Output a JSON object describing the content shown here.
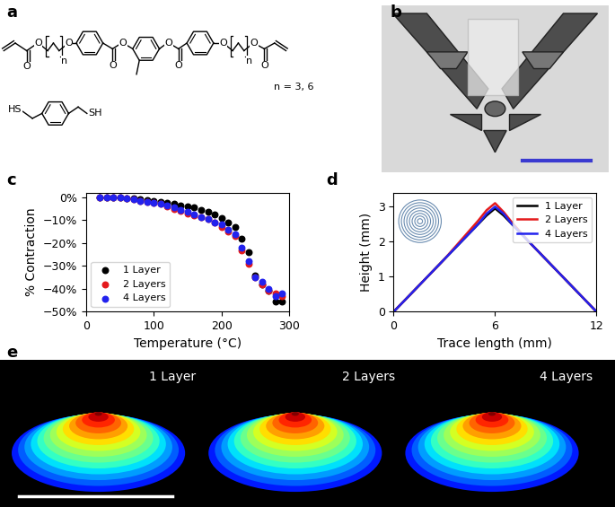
{
  "panel_labels": [
    "a",
    "b",
    "c",
    "d",
    "e"
  ],
  "structure": {
    "oxygen": "O",
    "repeat": "n",
    "thiol_left": "HS",
    "thiol_right": "SH",
    "caption": "n = 3, 6"
  },
  "chart_data": [
    {
      "type": "scatter",
      "xlabel": "Temperature (°C)",
      "ylabel": "% Contraction",
      "x": [
        20,
        30,
        40,
        50,
        60,
        70,
        80,
        90,
        100,
        110,
        120,
        130,
        140,
        150,
        160,
        170,
        180,
        190,
        200,
        210,
        220,
        230,
        240,
        250,
        260,
        270,
        280,
        290
      ],
      "series": [
        {
          "name": "1 Layer",
          "color": "#000000",
          "marker": "o",
          "values": [
            0,
            0,
            0,
            0,
            -0.3,
            -0.5,
            -0.8,
            -1.2,
            -1.6,
            -2,
            -2.5,
            -3,
            -3.5,
            -4,
            -4.5,
            -5.5,
            -6.5,
            -7.5,
            -9,
            -11,
            -13,
            -18,
            -24,
            -34,
            -38,
            -41,
            -45.5,
            -45.5
          ]
        },
        {
          "name": "2 Layers",
          "color": "#e41a1c",
          "marker": "o",
          "values": [
            0,
            0,
            0,
            0,
            -0.5,
            -1,
            -1.5,
            -2,
            -2.5,
            -3,
            -4,
            -5,
            -6,
            -7,
            -8,
            -8.5,
            -9.5,
            -11,
            -13,
            -15,
            -17,
            -23,
            -29,
            -35,
            -38,
            -41,
            -42,
            -43
          ]
        },
        {
          "name": "4 Layers",
          "color": "#2222ee",
          "marker": "o",
          "values": [
            0,
            0,
            0,
            0,
            -0.5,
            -1,
            -1.5,
            -2,
            -2.5,
            -3,
            -3.5,
            -4.5,
            -5.5,
            -6.5,
            -7.5,
            -8.5,
            -9.5,
            -11,
            -12,
            -14,
            -16,
            -22,
            -28,
            -35,
            -37,
            -40,
            -43,
            -42
          ]
        }
      ],
      "xlim": [
        0,
        300
      ],
      "xticks": [
        0,
        100,
        200,
        300
      ],
      "ylim": [
        -50,
        2
      ],
      "yticks": [
        {
          "value": 0,
          "label": "0%"
        },
        {
          "value": -10,
          "label": "−10%"
        },
        {
          "value": -20,
          "label": "−20%"
        },
        {
          "value": -30,
          "label": "−30%"
        },
        {
          "value": -40,
          "label": "−40%"
        },
        {
          "value": -50,
          "label": "−50%"
        }
      ],
      "legend": "lower left"
    },
    {
      "type": "line",
      "xlabel": "Trace length (mm)",
      "ylabel": "Height (mm)",
      "x": [
        0,
        1,
        2,
        3,
        4,
        5,
        5.5,
        6,
        6.5,
        7,
        8,
        9,
        10,
        11,
        12
      ],
      "series": [
        {
          "name": "1 Layer",
          "color": "#000000",
          "line_style": "solid",
          "values": [
            0,
            0.5,
            1.0,
            1.5,
            2.0,
            2.5,
            2.75,
            2.95,
            2.75,
            2.5,
            2.0,
            1.5,
            1.0,
            0.5,
            0
          ]
        },
        {
          "name": "2 Layers",
          "color": "#e41a1c",
          "line_style": "solid",
          "values": [
            0,
            0.5,
            1.0,
            1.5,
            2.05,
            2.6,
            2.9,
            3.1,
            2.85,
            2.55,
            2.0,
            1.5,
            1.0,
            0.5,
            0
          ]
        },
        {
          "name": "4 Layers",
          "color": "#2222ee",
          "line_style": "solid",
          "values": [
            0,
            0.5,
            1.0,
            1.5,
            2.0,
            2.5,
            2.8,
            3.0,
            2.8,
            2.5,
            2.0,
            1.5,
            1.0,
            0.5,
            0
          ]
        }
      ],
      "xlim": [
        0,
        12
      ],
      "xticks": [
        0,
        6,
        12
      ],
      "ylim": [
        0,
        3.4
      ],
      "yticks": [
        0,
        1,
        2,
        3
      ],
      "legend": "upper right"
    }
  ],
  "renders": {
    "labels": [
      "1 Layer",
      "2 Layers",
      "4 Layers"
    ]
  }
}
